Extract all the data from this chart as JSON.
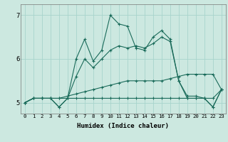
{
  "xlabel": "Humidex (Indice chaleur)",
  "bg_color": "#cce8e0",
  "line_color": "#1a6b5a",
  "grid_color": "#a8d4cc",
  "x_ticks": [
    0,
    1,
    2,
    3,
    4,
    5,
    6,
    7,
    8,
    9,
    10,
    11,
    12,
    13,
    14,
    15,
    16,
    17,
    18,
    19,
    20,
    21,
    22,
    23
  ],
  "ylim": [
    4.75,
    7.25
  ],
  "xlim": [
    -0.5,
    23.5
  ],
  "series": [
    [
      5.0,
      5.1,
      5.1,
      5.1,
      5.1,
      5.1,
      5.1,
      5.1,
      5.1,
      5.1,
      5.1,
      5.1,
      5.1,
      5.1,
      5.1,
      5.1,
      5.1,
      5.1,
      5.1,
      5.1,
      5.1,
      5.1,
      5.1,
      5.3
    ],
    [
      5.0,
      5.1,
      5.1,
      5.1,
      5.1,
      5.15,
      5.2,
      5.25,
      5.3,
      5.35,
      5.4,
      5.45,
      5.5,
      5.5,
      5.5,
      5.5,
      5.5,
      5.55,
      5.6,
      5.65,
      5.65,
      5.65,
      5.65,
      5.3
    ],
    [
      5.0,
      5.1,
      5.1,
      5.1,
      4.9,
      5.1,
      5.6,
      6.0,
      5.8,
      6.0,
      6.2,
      6.3,
      6.25,
      6.3,
      6.25,
      6.35,
      6.5,
      6.4,
      5.5,
      5.15,
      5.15,
      5.1,
      4.9,
      5.3
    ],
    [
      5.0,
      5.1,
      5.1,
      5.1,
      4.9,
      5.1,
      6.0,
      6.45,
      5.95,
      6.2,
      7.0,
      6.8,
      6.75,
      6.25,
      6.2,
      6.5,
      6.65,
      6.45,
      5.5,
      5.1,
      5.1,
      5.1,
      4.9,
      5.3
    ]
  ]
}
